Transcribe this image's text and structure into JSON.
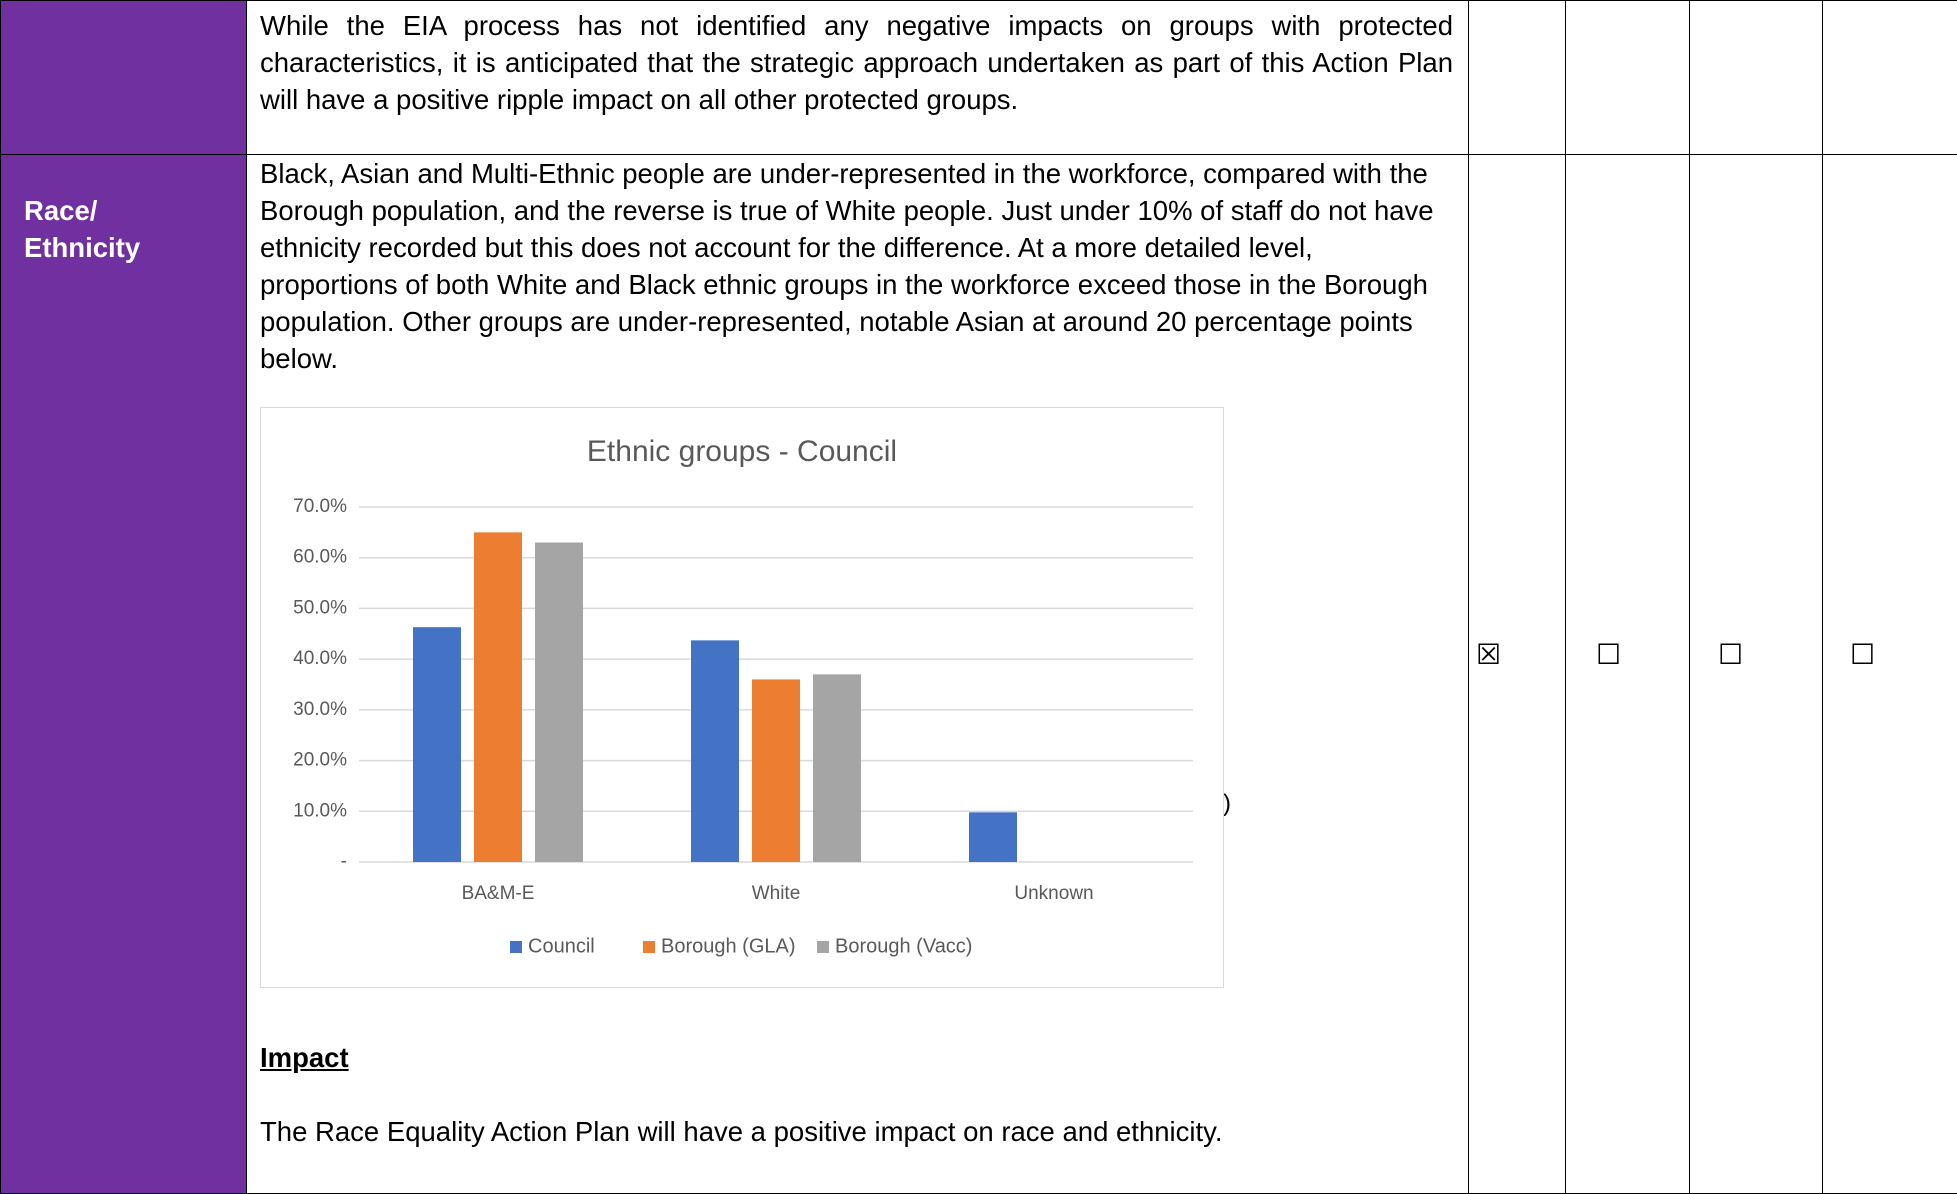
{
  "table": {
    "rows": [
      {
        "description": "While the EIA process has not identified any negative impacts on groups with protected characteristics, it is anticipated that the strategic approach undertaken as part of this Action Plan will have a positive ripple impact on all other protected groups."
      },
      {
        "group": "Race/ Ethnicity",
        "description": "Black, Asian and Multi-Ethnic people are under-represented in the workforce, compared with the Borough population, and the reverse is true of White people. Just under 10% of staff do not have ethnicity recorded but this does not account for the difference. At a more detailed level, proportions of both White and Black ethnic groups in the workforce exceed those in the Borough population. Other groups are under-represented, notable Asian at around 20 percentage points below.",
        "stray": ")",
        "impact_heading": "Impact",
        "impact_text": "The Race Equality Action Plan will have a positive impact on race and ethnicity.",
        "checkboxes": [
          "☒",
          "☐",
          "☐",
          "☐"
        ]
      }
    ]
  },
  "chart_data": {
    "type": "bar",
    "title": "Ethnic groups - Council",
    "categories": [
      "BA&M-E",
      "White",
      "Unknown"
    ],
    "series": [
      {
        "name": "Council",
        "color": "#4472c4",
        "values": [
          46.3,
          43.7,
          9.8
        ]
      },
      {
        "name": "Borough (GLA)",
        "color": "#ed7d31",
        "values": [
          65,
          36,
          null
        ]
      },
      {
        "name": "Borough (Vacc)",
        "color": "#a5a5a5",
        "values": [
          63,
          37,
          null
        ]
      }
    ],
    "ylim": [
      0,
      70
    ],
    "yticks": [
      {
        "value": 0,
        "label": "-"
      },
      {
        "value": 10,
        "label": "10.0%"
      },
      {
        "value": 20,
        "label": "20.0%"
      },
      {
        "value": 30,
        "label": "30.0%"
      },
      {
        "value": 40,
        "label": "40.0%"
      },
      {
        "value": 50,
        "label": "50.0%"
      },
      {
        "value": 60,
        "label": "60.0%"
      },
      {
        "value": 70,
        "label": "70.0%"
      }
    ],
    "grid": true,
    "legend": "bottom"
  }
}
